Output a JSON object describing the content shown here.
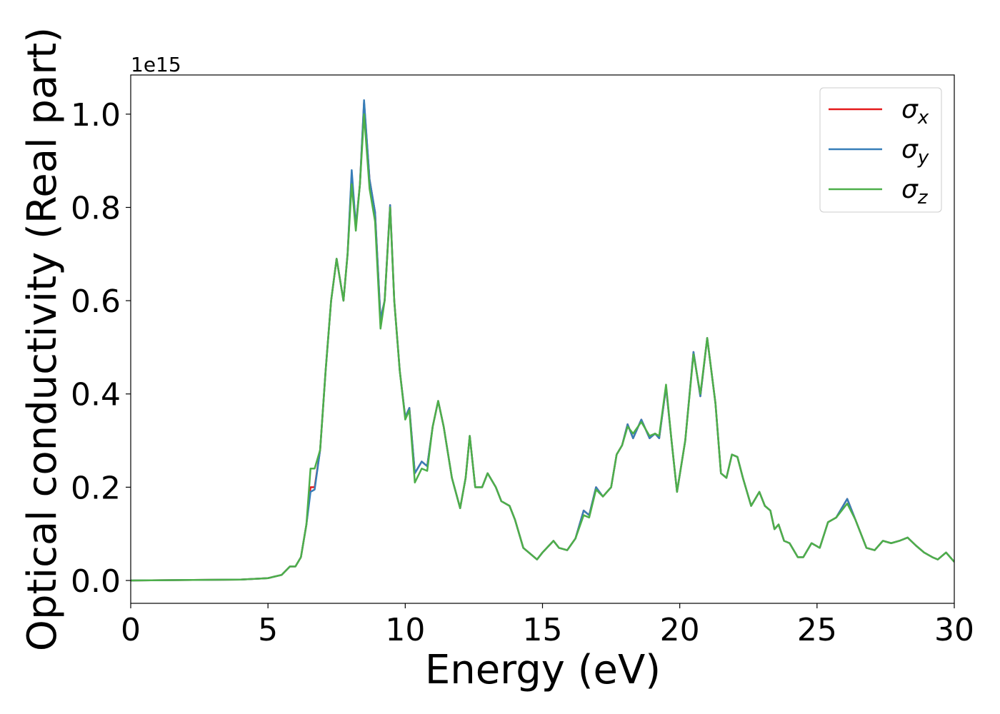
{
  "chart_data": {
    "type": "line",
    "xlabel": "Energy (eV)",
    "ylabel": "Optical conductivity (Real part)",
    "y_offset_label": "1e15",
    "x": [
      0,
      4,
      5,
      5.5,
      5.8,
      6,
      6.2,
      6.4,
      6.55,
      6.7,
      6.9,
      7.1,
      7.3,
      7.5,
      7.75,
      7.9,
      8.05,
      8.2,
      8.35,
      8.5,
      8.7,
      8.9,
      9.1,
      9.25,
      9.45,
      9.6,
      9.8,
      10,
      10.15,
      10.35,
      10.6,
      10.8,
      11,
      11.2,
      11.4,
      11.7,
      12,
      12.2,
      12.35,
      12.55,
      12.8,
      13,
      13.3,
      13.5,
      13.8,
      14,
      14.3,
      14.6,
      14.8,
      15,
      15.4,
      15.6,
      15.9,
      16.2,
      16.5,
      16.7,
      16.95,
      17.2,
      17.5,
      17.7,
      17.9,
      18.1,
      18.3,
      18.6,
      18.9,
      19.1,
      19.25,
      19.5,
      19.7,
      19.9,
      20.2,
      20.5,
      20.75,
      21,
      21.3,
      21.5,
      21.7,
      21.9,
      22.1,
      22.3,
      22.6,
      22.9,
      23.1,
      23.3,
      23.45,
      23.6,
      23.8,
      24,
      24.3,
      24.5,
      24.8,
      25.1,
      25.4,
      25.7,
      26.1,
      26.4,
      26.8,
      27.1,
      27.4,
      27.7,
      28,
      28.3,
      28.6,
      28.9,
      29.2,
      29.4,
      29.7,
      30
    ],
    "series": [
      {
        "name": "σx",
        "color": "#e41a1c",
        "values": [
          0,
          0.002,
          0.005,
          0.012,
          0.03,
          0.03,
          0.05,
          0.12,
          0.2,
          0.2,
          0.28,
          0.45,
          0.6,
          0.69,
          0.6,
          0.7,
          0.87,
          0.76,
          0.85,
          1.025,
          0.86,
          0.79,
          0.56,
          0.6,
          0.805,
          0.6,
          0.45,
          0.35,
          0.37,
          0.23,
          0.255,
          0.245,
          0.33,
          0.385,
          0.33,
          0.22,
          0.155,
          0.22,
          0.31,
          0.2,
          0.2,
          0.23,
          0.2,
          0.17,
          0.16,
          0.13,
          0.07,
          0.055,
          0.045,
          0.06,
          0.085,
          0.07,
          0.065,
          0.09,
          0.15,
          0.14,
          0.2,
          0.18,
          0.2,
          0.27,
          0.29,
          0.335,
          0.305,
          0.345,
          0.305,
          0.315,
          0.305,
          0.415,
          0.3,
          0.19,
          0.3,
          0.49,
          0.395,
          0.52,
          0.38,
          0.23,
          0.22,
          0.27,
          0.265,
          0.22,
          0.16,
          0.19,
          0.16,
          0.15,
          0.11,
          0.12,
          0.085,
          0.08,
          0.05,
          0.05,
          0.08,
          0.07,
          0.125,
          0.135,
          0.175,
          0.13,
          0.07,
          0.065,
          0.085,
          0.08,
          0.085,
          0.092,
          0.075,
          0.06,
          0.05,
          0.045,
          0.06,
          0.04
        ]
      },
      {
        "name": "σy",
        "color": "#377eb8",
        "values": [
          0,
          0.002,
          0.005,
          0.012,
          0.03,
          0.03,
          0.05,
          0.12,
          0.19,
          0.195,
          0.28,
          0.45,
          0.6,
          0.69,
          0.6,
          0.7,
          0.88,
          0.76,
          0.85,
          1.03,
          0.86,
          0.79,
          0.56,
          0.6,
          0.805,
          0.6,
          0.45,
          0.35,
          0.37,
          0.23,
          0.255,
          0.245,
          0.33,
          0.385,
          0.33,
          0.22,
          0.155,
          0.22,
          0.31,
          0.2,
          0.2,
          0.23,
          0.2,
          0.17,
          0.16,
          0.13,
          0.07,
          0.055,
          0.045,
          0.06,
          0.085,
          0.07,
          0.065,
          0.09,
          0.15,
          0.14,
          0.2,
          0.18,
          0.2,
          0.27,
          0.29,
          0.335,
          0.305,
          0.345,
          0.305,
          0.315,
          0.305,
          0.415,
          0.3,
          0.19,
          0.3,
          0.49,
          0.395,
          0.52,
          0.38,
          0.23,
          0.22,
          0.27,
          0.265,
          0.22,
          0.16,
          0.19,
          0.16,
          0.15,
          0.11,
          0.12,
          0.085,
          0.08,
          0.05,
          0.05,
          0.08,
          0.07,
          0.125,
          0.135,
          0.175,
          0.13,
          0.07,
          0.065,
          0.085,
          0.08,
          0.085,
          0.092,
          0.075,
          0.06,
          0.05,
          0.045,
          0.06,
          0.04
        ]
      },
      {
        "name": "σz",
        "color": "#4daf4a",
        "values": [
          0,
          0.002,
          0.005,
          0.012,
          0.03,
          0.03,
          0.05,
          0.12,
          0.24,
          0.24,
          0.28,
          0.45,
          0.6,
          0.69,
          0.6,
          0.7,
          0.85,
          0.75,
          0.85,
          1.0,
          0.84,
          0.77,
          0.54,
          0.6,
          0.8,
          0.6,
          0.45,
          0.345,
          0.365,
          0.21,
          0.24,
          0.235,
          0.33,
          0.385,
          0.33,
          0.22,
          0.155,
          0.22,
          0.31,
          0.2,
          0.2,
          0.23,
          0.2,
          0.17,
          0.16,
          0.13,
          0.07,
          0.055,
          0.045,
          0.06,
          0.085,
          0.07,
          0.065,
          0.09,
          0.14,
          0.135,
          0.195,
          0.18,
          0.2,
          0.27,
          0.29,
          0.33,
          0.315,
          0.34,
          0.31,
          0.315,
          0.31,
          0.42,
          0.3,
          0.19,
          0.3,
          0.485,
          0.4,
          0.52,
          0.38,
          0.23,
          0.22,
          0.27,
          0.265,
          0.22,
          0.16,
          0.19,
          0.16,
          0.15,
          0.11,
          0.12,
          0.085,
          0.08,
          0.05,
          0.05,
          0.08,
          0.07,
          0.125,
          0.135,
          0.165,
          0.13,
          0.07,
          0.065,
          0.085,
          0.08,
          0.085,
          0.092,
          0.075,
          0.06,
          0.05,
          0.045,
          0.06,
          0.04
        ]
      }
    ],
    "xlim": [
      0,
      30
    ],
    "xticks": [
      0,
      5,
      10,
      15,
      20,
      25,
      30
    ],
    "ylim": [
      -0.049,
      1.084
    ],
    "yticks": [
      {
        "value": 0,
        "label": "0.0"
      },
      0.2,
      0.4,
      0.6,
      0.8,
      {
        "value": 1,
        "label": "1.0"
      }
    ],
    "grid": false,
    "legend": "upper right"
  }
}
